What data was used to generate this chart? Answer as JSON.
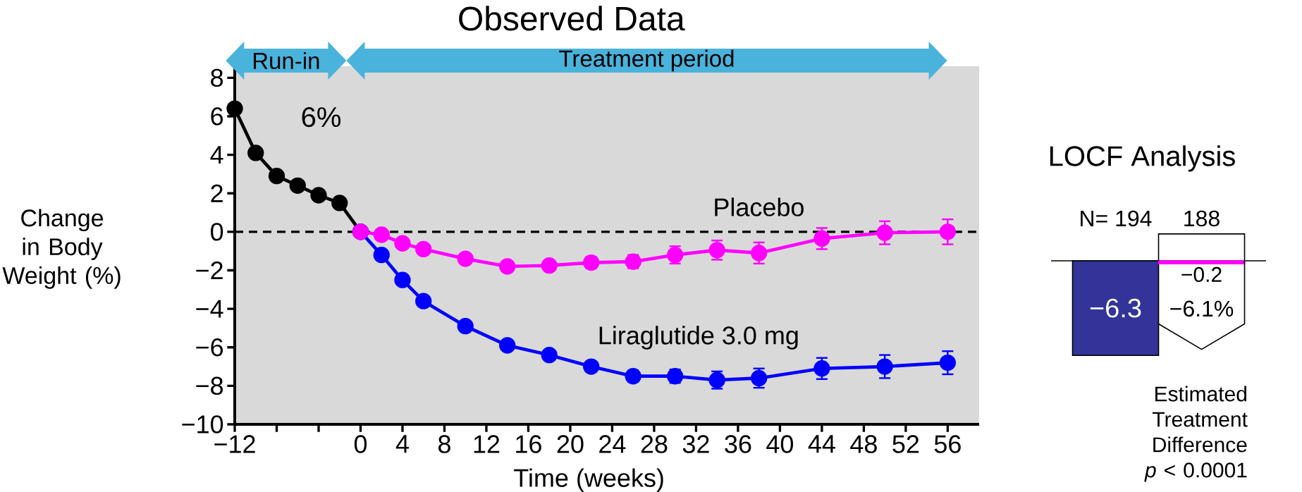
{
  "chart_data": [
    {
      "type": "line",
      "title": "Observed Data",
      "xlabel": "Time (weeks)",
      "ylabel": "Change in Body Weight (%)",
      "xlim": [
        -12,
        59
      ],
      "ylim": [
        -10,
        8.6
      ],
      "xticks": [
        {
          "value": -12,
          "label": "−12"
        },
        {
          "value": -8,
          "label": null
        },
        {
          "value": -4,
          "label": null
        },
        0,
        4,
        8,
        12,
        16,
        20,
        24,
        28,
        32,
        36,
        40,
        44,
        48,
        52,
        56
      ],
      "yticks": [
        {
          "value": -10,
          "label": "−10"
        },
        {
          "value": -8,
          "label": "−8"
        },
        {
          "value": -6,
          "label": "−6"
        },
        {
          "value": -4,
          "label": "−4"
        },
        {
          "value": -2,
          "label": "−2"
        },
        0,
        2,
        4,
        6,
        8
      ],
      "marker": "circle",
      "series": [
        {
          "color": "#000000",
          "x": [
            -12,
            -10,
            -8,
            -6,
            -4,
            -2,
            0
          ],
          "values": [
            6.4,
            4.1,
            2.9,
            2.4,
            1.9,
            1.5,
            0
          ]
        },
        {
          "name": "Liraglutide 3.0 mg",
          "color": "#0000ff",
          "x": [
            0,
            2,
            4,
            6,
            10,
            14,
            18,
            22,
            26,
            30,
            34,
            38,
            44,
            50,
            56
          ],
          "values": [
            0,
            -1.2,
            -2.5,
            -3.6,
            -4.9,
            -5.9,
            -6.4,
            -7.0,
            -7.5,
            -7.5,
            -7.7,
            -7.6,
            -7.1,
            -7.0,
            -6.8
          ],
          "errors": [
            null,
            null,
            null,
            null,
            null,
            null,
            null,
            null,
            0.3,
            0.35,
            0.45,
            0.5,
            0.55,
            0.6,
            0.6
          ]
        },
        {
          "name": "Placebo",
          "color": "#ff00ff",
          "x": [
            0,
            2,
            4,
            6,
            10,
            14,
            18,
            22,
            26,
            30,
            34,
            38,
            44,
            50,
            56
          ],
          "values": [
            0,
            -0.15,
            -0.6,
            -0.9,
            -1.4,
            -1.8,
            -1.75,
            -1.6,
            -1.55,
            -1.2,
            -0.95,
            -1.1,
            -0.35,
            -0.05,
            0
          ],
          "errors": [
            null,
            null,
            null,
            null,
            null,
            null,
            null,
            0.3,
            0.35,
            0.45,
            0.5,
            0.55,
            0.55,
            0.6,
            0.65
          ]
        }
      ],
      "ref_lines": [
        {
          "axis": "y",
          "value": 0,
          "color": "#000000",
          "line_style": "dashed"
        }
      ],
      "annotations": [
        "Run-in",
        "Treatment period",
        "6%"
      ]
    },
    {
      "type": "bar",
      "title": "LOCF Analysis",
      "categories": [
        "N= 194",
        "188"
      ],
      "values": [
        -6.3,
        -0.2
      ],
      "colors": [
        "#333399",
        "#ff00ff"
      ],
      "value_labels": [
        "−6.3",
        "−0.2"
      ],
      "annotations": [
        "−6.1%",
        "Estimated Treatment Difference *p* < 0.0001"
      ]
    }
  ]
}
